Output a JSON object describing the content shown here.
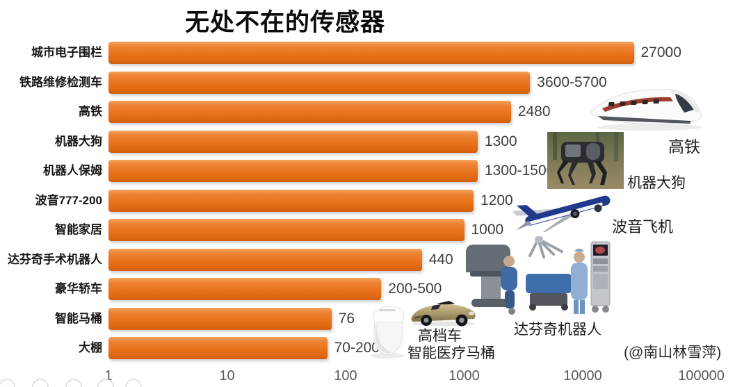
{
  "title": "无处不在的传感器",
  "attribution": "(@南山林雪萍)",
  "colors": {
    "bar_orange": "#e8731c",
    "bar_highlight": "#f3a35f",
    "bar_shadow_edge": "#cf5e0e",
    "value_text": "#3d3d3d",
    "tick_text": "#595959",
    "category_text": "#161616",
    "title_text": "#0b0b0b"
  },
  "chart_data": {
    "type": "bar",
    "orientation": "horizontal",
    "x_scale": "log10",
    "xlim": [
      1,
      100000
    ],
    "grid": false,
    "legend": false,
    "title": "无处不在的传感器",
    "xlabel": "",
    "ylabel": "",
    "x_ticks": [
      "1",
      "10",
      "100",
      "1000",
      "10000",
      "100000"
    ],
    "categories": [
      "城市电子围栏",
      "铁路维修检测车",
      "高铁",
      "机器大狗",
      "机器人保姆",
      "波音777-200",
      "智能家居",
      "达芬奇手术机器人",
      "豪华轿车",
      "智能马桶",
      "大棚"
    ],
    "value_labels": [
      "27000",
      "3600-5700",
      "2480",
      "1300",
      "1300-1500",
      "1200",
      "1000",
      "440",
      "200-500",
      "76",
      "70-200"
    ],
    "bar_values": [
      27000,
      3600,
      2480,
      1300,
      1300,
      1200,
      1000,
      440,
      200,
      76,
      70
    ]
  },
  "annotations": {
    "train": "高铁",
    "robot_dog": "机器大狗",
    "boeing": "波音飞机",
    "davinci": "达芬奇机器人",
    "car": "高档车",
    "toilet": "智能医疗马桶"
  }
}
